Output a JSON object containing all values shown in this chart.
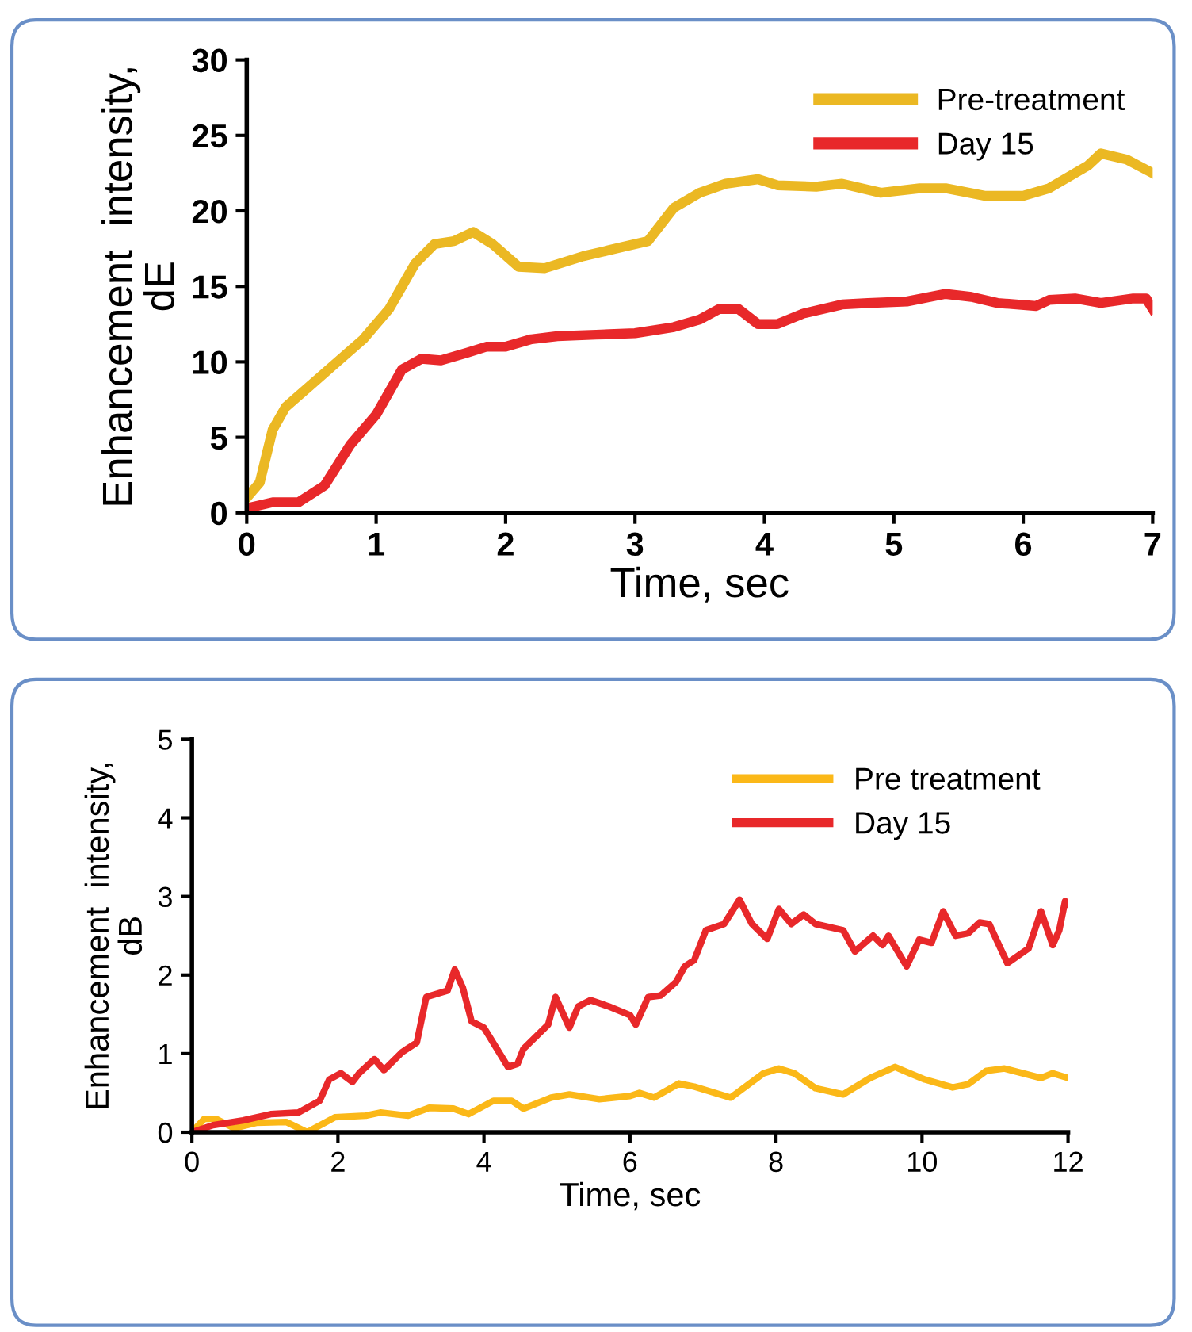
{
  "chart_data": [
    {
      "type": "line",
      "xlabel": "Time, sec",
      "ylabel": "Enhancement  intensity,\ndE",
      "xlim": [
        0,
        7
      ],
      "xticks": [
        0,
        1,
        2,
        3,
        4,
        5,
        6,
        7
      ],
      "ylim": [
        0,
        30
      ],
      "yticks": [
        0,
        5,
        10,
        15,
        20,
        25,
        30
      ],
      "grid": false,
      "legend": "top right",
      "marker": "none",
      "line_style": "solid",
      "series": [
        {
          "name": "Pre-treatment",
          "color": "#ebb823",
          "x": [
            0,
            0.1,
            0.2,
            0.3,
            0.5,
            0.7,
            0.9,
            1.1,
            1.3,
            1.45,
            1.6,
            1.75,
            1.9,
            2.1,
            2.3,
            2.6,
            2.9,
            3.1,
            3.3,
            3.5,
            3.7,
            3.95,
            4.1,
            4.4,
            4.6,
            4.9,
            5.2,
            5.4,
            5.7,
            6.0,
            6.2,
            6.5,
            6.6,
            6.8,
            7
          ],
          "values": [
            1,
            2,
            5.5,
            7,
            8.5,
            10,
            11.5,
            13.5,
            16.5,
            17.8,
            18,
            18.6,
            17.8,
            16.3,
            16.2,
            17,
            17.6,
            18,
            20.2,
            21.2,
            21.8,
            22.1,
            21.7,
            21.6,
            21.8,
            21.2,
            21.5,
            21.5,
            21,
            21,
            21.5,
            23,
            23.8,
            23.4,
            22.5
          ]
        },
        {
          "name": "Day 15",
          "color": "#e8282a",
          "x": [
            0,
            0.2,
            0.4,
            0.6,
            0.8,
            1.0,
            1.2,
            1.35,
            1.5,
            1.7,
            1.85,
            2,
            2.2,
            2.4,
            2.7,
            3,
            3.3,
            3.5,
            3.65,
            3.8,
            3.95,
            4.1,
            4.3,
            4.6,
            4.8,
            5.1,
            5.4,
            5.6,
            5.8,
            6.1,
            6.2,
            6.4,
            6.6,
            6.85,
            6.95,
            7
          ],
          "values": [
            0.3,
            0.7,
            0.7,
            1.8,
            4.5,
            6.5,
            9.5,
            10.2,
            10.1,
            10.6,
            11,
            11,
            11.5,
            11.7,
            11.8,
            11.9,
            12.3,
            12.8,
            13.5,
            13.5,
            12.5,
            12.5,
            13.2,
            13.8,
            13.9,
            14,
            14.5,
            14.3,
            13.9,
            13.7,
            14.1,
            14.2,
            13.9,
            14.2,
            14.2,
            13.5
          ]
        }
      ]
    },
    {
      "type": "line",
      "xlabel": "Time, sec",
      "ylabel": "Enhancement  intensity,\ndB",
      "xlim": [
        0,
        12
      ],
      "xticks": [
        0,
        2,
        4,
        6,
        8,
        10,
        12
      ],
      "ylim": [
        0,
        5
      ],
      "yticks": [
        0,
        1,
        2,
        3,
        4,
        5
      ],
      "grid": false,
      "legend": "top right",
      "marker": "none",
      "line_style": "solid",
      "series": [
        {
          "name": "Pre treatment",
          "color": "#fbb818",
          "x": [
            0,
            0.17,
            0.33,
            0.58,
            0.88,
            1.29,
            1.58,
            1.96,
            2.38,
            2.58,
            2.96,
            3.25,
            3.58,
            3.79,
            4.13,
            4.38,
            4.54,
            4.92,
            5.17,
            5.58,
            6.0,
            6.13,
            6.33,
            6.67,
            6.88,
            7.38,
            7.83,
            8.04,
            8.25,
            8.54,
            8.92,
            9.29,
            9.63,
            9.83,
            10.04,
            10.42,
            10.63,
            10.88,
            11.13,
            11.63,
            11.79,
            12
          ],
          "values": [
            0,
            0.17,
            0.17,
            0.05,
            0.12,
            0.13,
            0,
            0.19,
            0.21,
            0.25,
            0.21,
            0.31,
            0.3,
            0.23,
            0.4,
            0.4,
            0.3,
            0.44,
            0.48,
            0.42,
            0.46,
            0.5,
            0.44,
            0.62,
            0.58,
            0.44,
            0.75,
            0.81,
            0.75,
            0.56,
            0.48,
            0.69,
            0.83,
            0.75,
            0.67,
            0.57,
            0.61,
            0.78,
            0.81,
            0.69,
            0.75,
            0.69
          ]
        },
        {
          "name": "Day 15",
          "color": "#e8282a",
          "x": [
            0,
            0.29,
            0.7,
            1.08,
            1.46,
            1.75,
            1.88,
            2.04,
            2.2,
            2.29,
            2.5,
            2.63,
            2.88,
            3.08,
            3.21,
            3.5,
            3.6,
            3.71,
            3.83,
            4.0,
            4.33,
            4.46,
            4.54,
            4.88,
            4.98,
            5.17,
            5.29,
            5.46,
            5.71,
            6.0,
            6.08,
            6.25,
            6.42,
            6.63,
            6.75,
            6.88,
            7.04,
            7.29,
            7.42,
            7.5,
            7.67,
            7.88,
            8.04,
            8.21,
            8.38,
            8.54,
            8.92,
            9.08,
            9.33,
            9.46,
            9.54,
            9.79,
            9.96,
            10.13,
            10.29,
            10.46,
            10.63,
            10.79,
            10.92,
            11.17,
            11.46,
            11.63,
            11.79,
            11.88,
            11.96,
            12
          ],
          "values": [
            0,
            0.09,
            0.15,
            0.23,
            0.25,
            0.4,
            0.67,
            0.75,
            0.64,
            0.75,
            0.93,
            0.79,
            1.02,
            1.14,
            1.72,
            1.8,
            2.07,
            1.84,
            1.41,
            1.33,
            0.83,
            0.87,
            1.06,
            1.37,
            1.72,
            1.33,
            1.6,
            1.68,
            1.6,
            1.49,
            1.37,
            1.72,
            1.74,
            1.91,
            2.11,
            2.19,
            2.57,
            2.65,
            2.84,
            2.96,
            2.65,
            2.46,
            2.84,
            2.65,
            2.77,
            2.65,
            2.57,
            2.3,
            2.5,
            2.38,
            2.5,
            2.11,
            2.45,
            2.41,
            2.81,
            2.5,
            2.53,
            2.67,
            2.65,
            2.15,
            2.34,
            2.81,
            2.38,
            2.57,
            2.94,
            2.91
          ]
        }
      ]
    }
  ]
}
